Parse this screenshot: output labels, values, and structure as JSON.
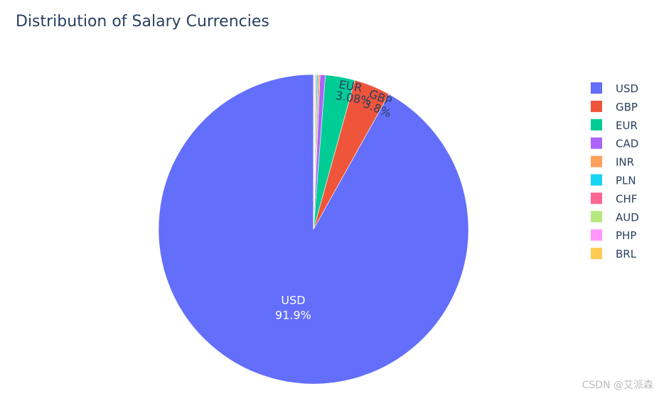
{
  "chart_data": {
    "type": "pie",
    "title": "Distribution of Salary Currencies",
    "categories": [
      "USD",
      "GBP",
      "EUR",
      "CAD",
      "INR",
      "PLN",
      "CHF",
      "AUD",
      "PHP",
      "BRL"
    ],
    "values": [
      91.9,
      3.8,
      3.08,
      0.55,
      0.2,
      0.15,
      0.1,
      0.08,
      0.07,
      0.07
    ],
    "labels": [
      "91.9%",
      "3.8%",
      "3.08%",
      "",
      "",
      "",
      "",
      "",
      "",
      ""
    ],
    "colors": [
      "#636efa",
      "#ef553b",
      "#00cc96",
      "#ab63fa",
      "#ffa15a",
      "#19d3f3",
      "#ff6692",
      "#b6e880",
      "#ff97ff",
      "#fecb52"
    ],
    "label_colors": [
      "#ffffff",
      "#2a3f5f",
      "#2a3f5f"
    ],
    "legend_position": "right",
    "start": "top",
    "direction": "counterclockwise"
  },
  "watermark": "CSDN @艾派森"
}
